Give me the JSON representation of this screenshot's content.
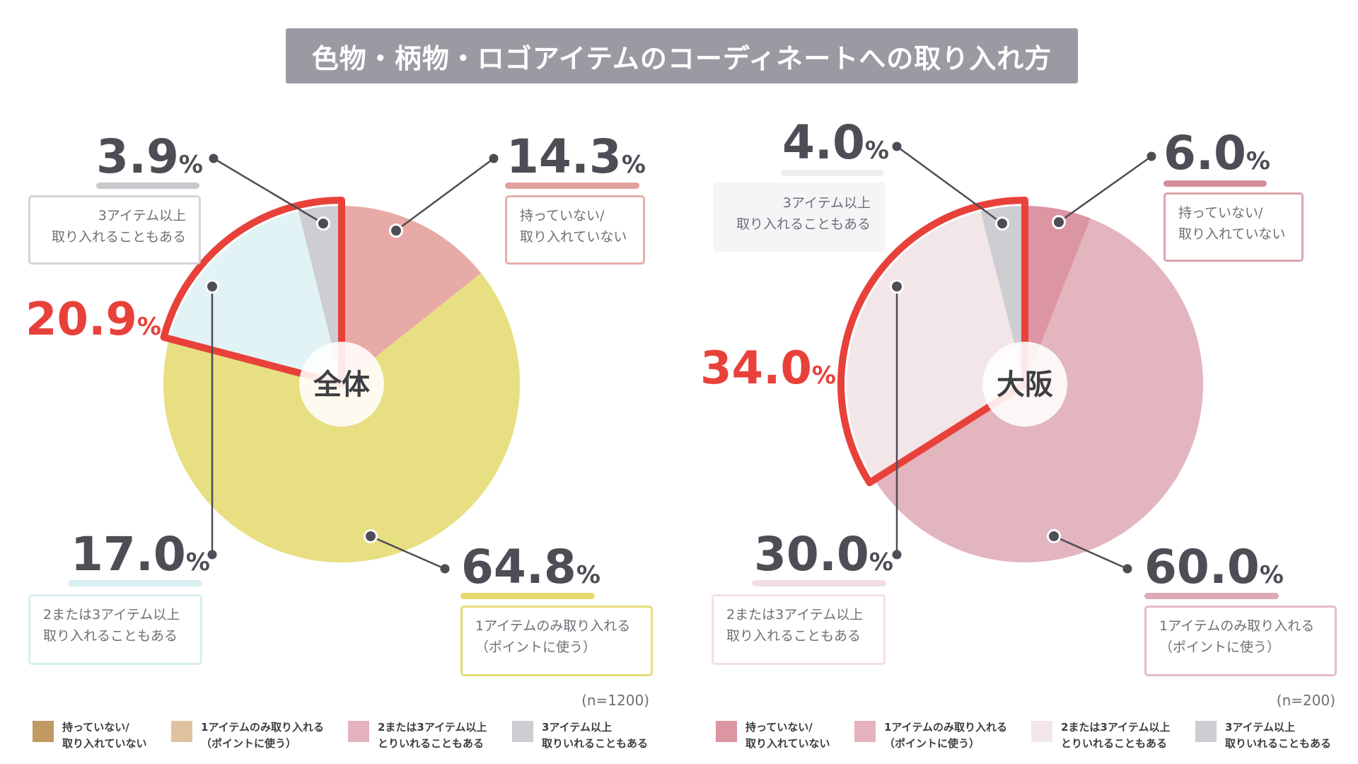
{
  "title": "色物・柄物・ロゴアイテムのコーディネートへの取り入れ方",
  "chart_data": [
    {
      "type": "pie",
      "center_label": "全体",
      "n": "(n=1200)",
      "highlight_category": "2または3アイテム以上取り入れることもある",
      "highlight_value": "20.9%",
      "slices": [
        {
          "name": "持っていない/取り入れていない",
          "value": 14.3,
          "value_text": "14.3",
          "pct": "%",
          "legend": [
            "持っていない/",
            "取り入れていない"
          ],
          "color": "#e8aaa6",
          "underline": "#e4a09c",
          "box_border": "#e4b0ac"
        },
        {
          "name": "1アイテムのみ取り入れる（ポイントに使う）",
          "value": 64.8,
          "value_text": "64.8",
          "pct": "%",
          "legend": [
            "1アイテムのみ取り入れる",
            "（ポイントに使う）"
          ],
          "color": "#e8df82",
          "underline": "#e5da6e",
          "box_border": "#e6dc78"
        },
        {
          "name": "2または3アイテム以上取り入れることもある",
          "value": 17.0,
          "value_text": "17.0",
          "pct": "%",
          "legend": [
            "2または3アイテム以上",
            "取り入れることもある"
          ],
          "color": "#e1f3f4",
          "underline": "#d8eff0",
          "box_border": "#d8eff0"
        },
        {
          "name": "3アイテム以上取り入れることもある",
          "value": 3.9,
          "value_text": "3.9",
          "pct": "%",
          "legend": [
            "3アイテム以上",
            "取り入れることもある"
          ],
          "color": "#cdcdd2",
          "underline": "#c8c8cd",
          "box_border": "#d4d4d8"
        }
      ],
      "keys": [
        {
          "color": "#bf9a62",
          "line1": "持っていない/",
          "line2": "取り入れていない"
        },
        {
          "color": "#dfc3a0",
          "line1": "1アイテムのみ取り入れる",
          "line2": "（ポイントに使う）"
        },
        {
          "color": "#e4b3bd",
          "line1": "2または3アイテム以上",
          "line2": "とりいれることもある"
        },
        {
          "color": "#cdcdd2",
          "line1": "3アイテム以上",
          "line2": "取りいれることもある"
        }
      ]
    },
    {
      "type": "pie",
      "center_label": "大阪",
      "n": "(n=200)",
      "highlight_category": "2または3アイテム以上取り入れることもある",
      "highlight_value": "34.0%",
      "slices": [
        {
          "name": "持っていない/取り入れていない",
          "value": 6.0,
          "value_text": "6.0",
          "pct": "%",
          "legend": [
            "持っていない/",
            "取り入れていない"
          ],
          "color": "#dc95a2",
          "underline": "#d48e9c",
          "box_border": "#dca5ae"
        },
        {
          "name": "1アイテムのみ取り入れる（ポイントに使う）",
          "value": 60.0,
          "value_text": "60.0",
          "pct": "%",
          "legend": [
            "1アイテムのみ取り入れる",
            "（ポイントに使う）"
          ],
          "color": "#e3b5be",
          "underline": "#ddaab4",
          "box_border": "#e6bcc4"
        },
        {
          "name": "2または3アイテム以上取り入れることもある",
          "value": 30.0,
          "value_text": "30.0",
          "pct": "%",
          "legend": [
            "2または3アイテム以上",
            "取り入れることもある"
          ],
          "color": "#f3e6e8",
          "underline": "#f2dfe2",
          "box_border": "#f2e0e3"
        },
        {
          "name": "3アイテム以上取り入れることもある",
          "value": 4.0,
          "value_text": "4.0",
          "pct": "%",
          "legend": [
            "3アイテム以上",
            "取り入れることもある"
          ],
          "color": "#cdcdd2",
          "underline": "#eeeef0",
          "box_border": "#f5f5f7"
        }
      ],
      "keys": [
        {
          "color": "#dc95a2",
          "line1": "持っていない/",
          "line2": "取り入れていない"
        },
        {
          "color": "#e4b3bd",
          "line1": "1アイテムのみ取り入れる",
          "line2": "（ポイントに使う）"
        },
        {
          "color": "#f3e6e8",
          "line1": "2または3アイテム以上",
          "line2": "とりいれることもある"
        },
        {
          "color": "#cdcdd2",
          "line1": "3アイテム以上",
          "line2": "取りいれることもある"
        }
      ]
    }
  ]
}
